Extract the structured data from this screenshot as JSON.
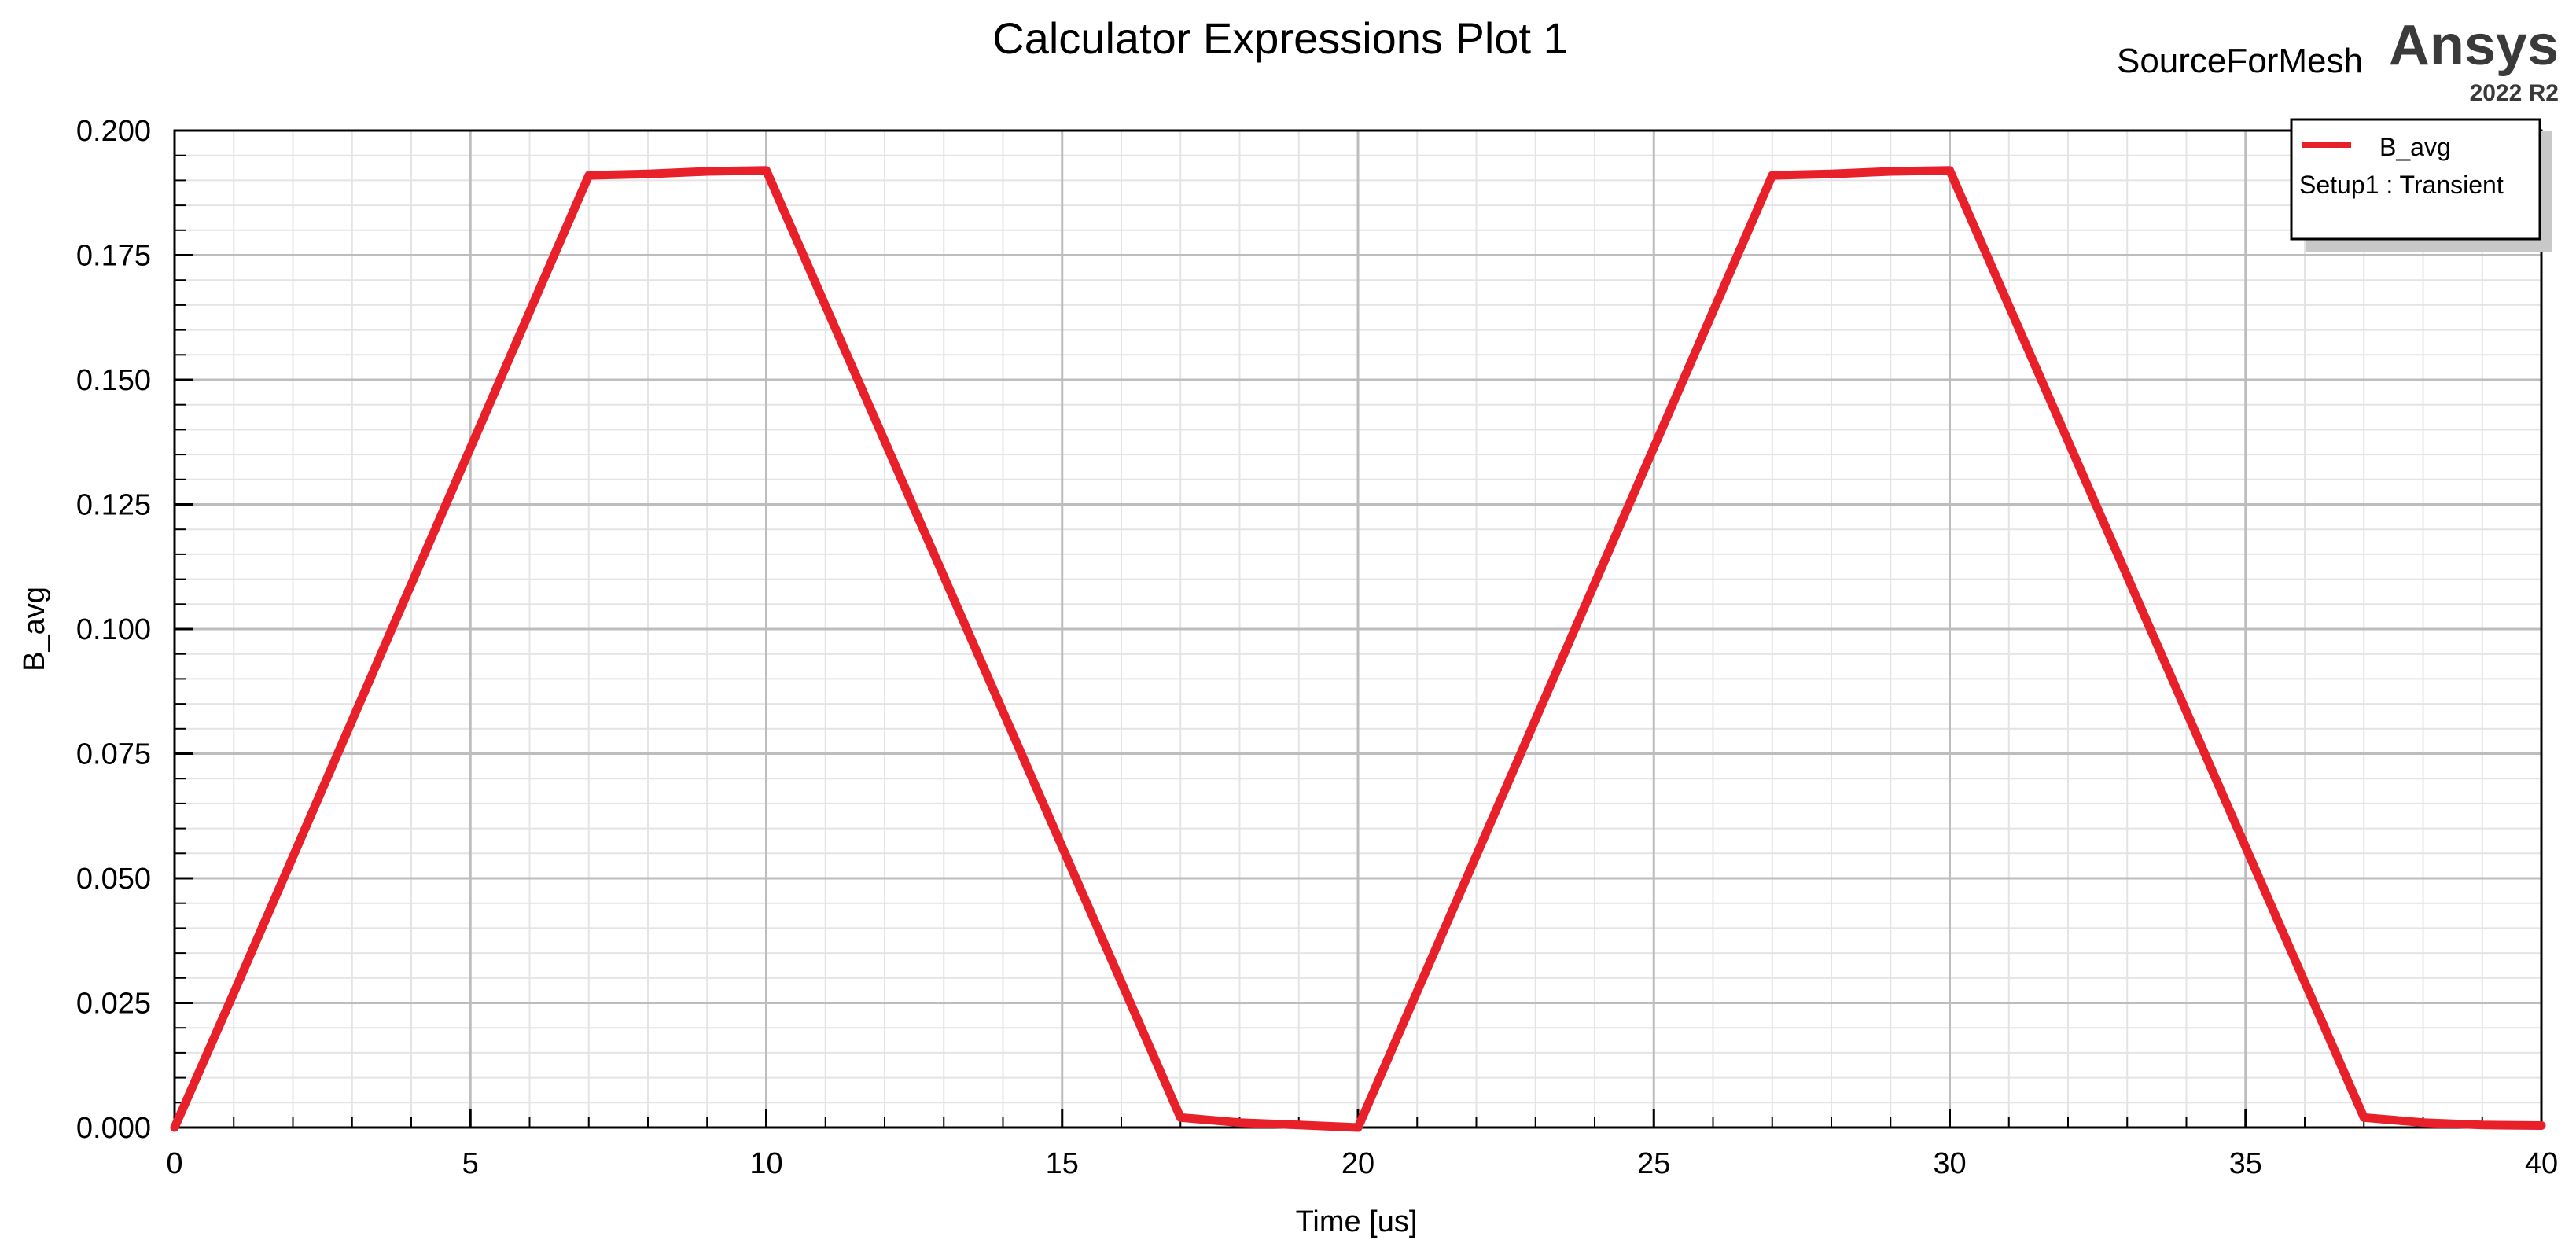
{
  "header": {
    "title": "Calculator Expressions Plot 1",
    "design_name": "SourceForMesh",
    "brand": "Ansys",
    "version": "2022 R2"
  },
  "chart_data": {
    "type": "line",
    "xlabel": "Time [us]",
    "ylabel": "B_avg",
    "xlim": [
      0,
      40
    ],
    "ylim": [
      0,
      0.2
    ],
    "x_ticks": [
      0,
      5,
      10,
      15,
      20,
      25,
      30,
      35,
      40
    ],
    "x_tick_labels": [
      "0",
      "5",
      "10",
      "15",
      "20",
      "25",
      "30",
      "35",
      "40"
    ],
    "y_ticks": [
      0,
      0.025,
      0.05,
      0.075,
      0.1,
      0.125,
      0.15,
      0.175,
      0.2
    ],
    "y_tick_labels": [
      "0.000",
      "0.025",
      "0.050",
      "0.075",
      "0.100",
      "0.125",
      "0.150",
      "0.175",
      "0.200"
    ],
    "grid": true,
    "legend": {
      "placement": "top-right",
      "entries": [
        {
          "label": "B_avg",
          "sublabel": "Setup1 : Transient",
          "color": "#e8202a"
        }
      ]
    },
    "series": [
      {
        "name": "B_avg",
        "color": "#e8202a",
        "x": [
          0,
          1,
          7,
          8,
          9,
          10,
          17,
          18,
          19,
          20,
          27,
          28,
          29,
          30,
          37,
          38,
          39,
          40
        ],
        "y": [
          0,
          0.027,
          0.191,
          0.1913,
          0.1918,
          0.192,
          0.002,
          0.001,
          0.0005,
          0,
          0.191,
          0.1913,
          0.1918,
          0.192,
          0.002,
          0.001,
          0.0005,
          0.0004
        ]
      }
    ]
  }
}
